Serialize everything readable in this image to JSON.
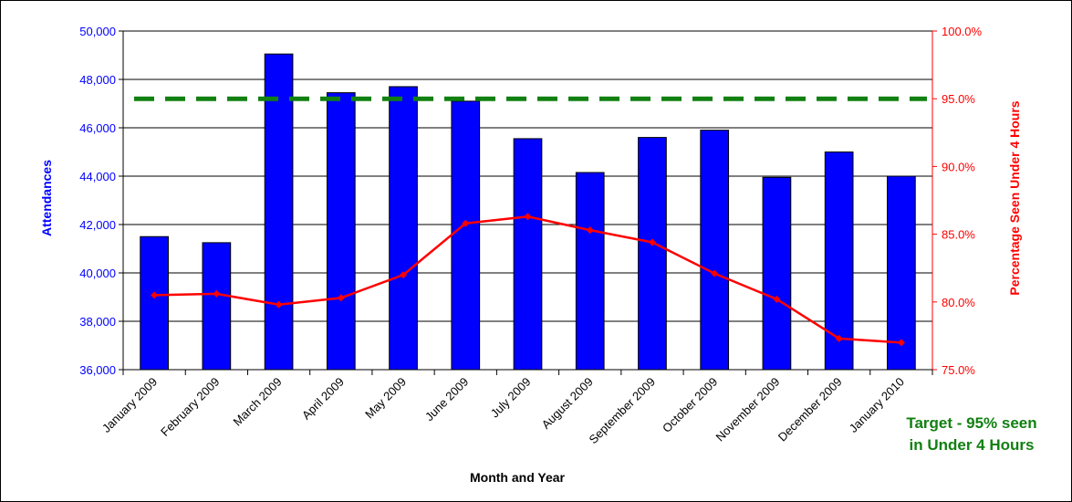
{
  "chart_data": {
    "type": "bar",
    "categories": [
      "January 2009",
      "February 2009",
      "March 2009",
      "April 2009",
      "May 2009",
      "June 2009",
      "July 2009",
      "August 2009",
      "September 2009",
      "October 2009",
      "November 2009",
      "December 2009",
      "January 2010"
    ],
    "series": [
      {
        "axis": "left",
        "chart": "bar",
        "color": "#0000ff",
        "values": [
          41500,
          41250,
          49050,
          47450,
          47700,
          47100,
          45550,
          44150,
          45600,
          45900,
          43950,
          45000,
          44000
        ]
      },
      {
        "axis": "right",
        "chart": "line",
        "color": "#ff0000",
        "values": [
          80.5,
          80.6,
          79.8,
          80.3,
          82.0,
          85.8,
          86.3,
          85.3,
          84.4,
          82.1,
          80.2,
          77.3,
          77.0
        ]
      },
      {
        "axis": "right",
        "chart": "line",
        "style": "dashed",
        "color": "#118011",
        "values": [
          95.0,
          95.0,
          95.0,
          95.0,
          95.0,
          95.0,
          95.0,
          95.0,
          95.0,
          95.0,
          95.0,
          95.0,
          95.0
        ]
      }
    ],
    "xlabel": "Month and Year",
    "ylabel": "Attendances",
    "y2label": "Percentage Seen Under 4 Hours",
    "ylim": [
      36000,
      50000
    ],
    "y2lim": [
      75.0,
      100.0
    ],
    "yticks": [
      "36,000",
      "38,000",
      "40,000",
      "42,000",
      "44,000",
      "46,000",
      "48,000",
      "50,000"
    ],
    "y2ticks": [
      "75.0%",
      "80.0%",
      "85.0%",
      "90.0%",
      "95.0%",
      "100.0%"
    ],
    "grid": "horizontal",
    "annotation_line1": "Target - 95% seen",
    "annotation_line2": "in Under 4 Hours"
  },
  "colors": {
    "bars": "#0000ff",
    "left_axis_text": "#0000ff",
    "right_axis_text": "#ff0000",
    "percent_line": "#ff0000",
    "target_line": "#118011"
  }
}
